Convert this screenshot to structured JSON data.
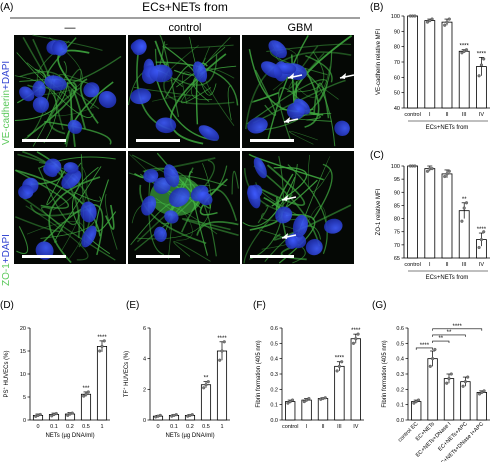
{
  "figure": {
    "panel_letters": [
      "(A)",
      "(B)",
      "(C)",
      "(D)",
      "(E)",
      "(F)",
      "(G)"
    ]
  },
  "microscopy": {
    "title": "ECs+NETs from",
    "columns": [
      "—",
      "control",
      "GBM"
    ],
    "rows": [
      {
        "stain": "VE-cadherin",
        "counter": "+DAPI"
      },
      {
        "stain": "ZO-1",
        "counter": "+DAPI"
      }
    ]
  },
  "colors": {
    "stain": "#5bc85b",
    "dapi": "#2d3fd0",
    "bar": "#ffffff",
    "point": "#7a7a7a"
  },
  "chart_data": [
    {
      "id": "B",
      "type": "bar",
      "ylabel": "VE-cadherin relative MFI",
      "xlabel": "ECs+NETs from",
      "categories": [
        "control",
        "I",
        "II",
        "III",
        "IV"
      ],
      "values": [
        100,
        97,
        96,
        77,
        67
      ],
      "errors": [
        0.3,
        1,
        2,
        1,
        6
      ],
      "points": [
        [
          100,
          100,
          100
        ],
        [
          96,
          97,
          98
        ],
        [
          94,
          96,
          98
        ],
        [
          76,
          77,
          78
        ],
        [
          61,
          68,
          72
        ]
      ],
      "ylim": [
        40,
        100
      ],
      "yticks": [
        40,
        50,
        60,
        70,
        80,
        90,
        100
      ],
      "significance": [
        "",
        "",
        "",
        "****",
        "****"
      ]
    },
    {
      "id": "C",
      "type": "bar",
      "ylabel": "ZO-1 relative MFI",
      "xlabel": "ECs+NETs from",
      "categories": [
        "control",
        "I",
        "II",
        "III",
        "IV"
      ],
      "values": [
        100,
        99,
        97,
        83,
        72
      ],
      "errors": [
        0.2,
        1,
        1.5,
        3,
        2.5
      ],
      "points": [
        [
          100,
          100,
          100
        ],
        [
          98,
          99,
          99
        ],
        [
          96,
          97,
          98
        ],
        [
          79,
          84,
          86
        ],
        [
          69,
          72,
          75
        ]
      ],
      "ylim": [
        65,
        100
      ],
      "yticks": [
        65,
        70,
        75,
        80,
        85,
        90,
        95,
        100
      ],
      "significance": [
        "",
        "",
        "",
        "**",
        "****"
      ]
    },
    {
      "id": "D",
      "type": "bar",
      "ylabel_main": "PS",
      "ylabel_sup": "+",
      "ylabel_rest": " HUVECs (%)",
      "xlabel": "NETs (µg DNA/ml)",
      "categories": [
        "0",
        "0.1",
        "0.2",
        "0.5",
        "1"
      ],
      "values": [
        1,
        1.2,
        1.3,
        5.6,
        16
      ],
      "errors": [
        0.3,
        0.3,
        0.3,
        0.5,
        1.2
      ],
      "points": [
        [
          0.8,
          1,
          1.2
        ],
        [
          0.9,
          1.2,
          1.4
        ],
        [
          1.0,
          1.3,
          1.5
        ],
        [
          5.2,
          5.6,
          6.1
        ],
        [
          15,
          16,
          17.2
        ]
      ],
      "ylim": [
        0,
        20
      ],
      "yticks": [
        0,
        5,
        10,
        15,
        20
      ],
      "significance": [
        "",
        "",
        "",
        "***",
        "****"
      ]
    },
    {
      "id": "E",
      "type": "bar",
      "ylabel_main": "TF",
      "ylabel_sup": "+",
      "ylabel_rest": " HUVECs (%)",
      "xlabel": "NETs (µg DNA/ml)",
      "categories": [
        "0",
        "0.1",
        "0.2",
        "0.5",
        "1"
      ],
      "values": [
        0.25,
        0.3,
        0.3,
        2.3,
        4.5
      ],
      "errors": [
        0.05,
        0.05,
        0.05,
        0.2,
        0.6
      ],
      "points": [
        [
          0.2,
          0.25,
          0.3
        ],
        [
          0.25,
          0.3,
          0.35
        ],
        [
          0.25,
          0.3,
          0.35
        ],
        [
          2.1,
          2.3,
          2.5
        ],
        [
          3.9,
          4.5,
          5.1
        ]
      ],
      "ylim": [
        0,
        6
      ],
      "yticks": [
        0,
        2,
        4,
        6
      ],
      "significance": [
        "",
        "",
        "",
        "**",
        "****"
      ]
    },
    {
      "id": "F",
      "type": "bar",
      "ylabel": "Fibrin formation (405 nm)",
      "categories": [
        "control",
        "I",
        "II",
        "III",
        "IV"
      ],
      "values": [
        0.12,
        0.13,
        0.14,
        0.35,
        0.53
      ],
      "errors": [
        0.01,
        0.01,
        0.005,
        0.03,
        0.03
      ],
      "points": [
        [
          0.11,
          0.12,
          0.13
        ],
        [
          0.12,
          0.13,
          0.14
        ],
        [
          0.135,
          0.14,
          0.145
        ],
        [
          0.32,
          0.35,
          0.38
        ],
        [
          0.5,
          0.53,
          0.56
        ]
      ],
      "ylim": [
        0,
        0.6
      ],
      "yticks": [
        0.0,
        0.1,
        0.2,
        0.3,
        0.4,
        0.5,
        0.6
      ],
      "significance": [
        "",
        "",
        "",
        "****",
        "****"
      ]
    },
    {
      "id": "G",
      "type": "bar",
      "ylabel": "Fibrin formation (405 nm)",
      "categories": [
        "control EC",
        "EC+NETs",
        "EC+NETs+DNase I",
        "EC+NETs+APC",
        "EC+NETs+DNase I+APC"
      ],
      "values": [
        0.12,
        0.4,
        0.27,
        0.25,
        0.18
      ],
      "errors": [
        0.01,
        0.05,
        0.03,
        0.03,
        0.01
      ],
      "points": [
        [
          0.11,
          0.12,
          0.13
        ],
        [
          0.35,
          0.4,
          0.46
        ],
        [
          0.24,
          0.27,
          0.3
        ],
        [
          0.22,
          0.25,
          0.28
        ],
        [
          0.17,
          0.18,
          0.19
        ]
      ],
      "ylim": [
        0,
        0.6
      ],
      "yticks": [
        0.0,
        0.1,
        0.2,
        0.3,
        0.4,
        0.5,
        0.6
      ],
      "significance": [],
      "brackets": [
        {
          "from": 0,
          "to": 1,
          "label": "****"
        },
        {
          "from": 1,
          "to": 2,
          "label": "**"
        },
        {
          "from": 1,
          "to": 3,
          "label": "**"
        },
        {
          "from": 1,
          "to": 4,
          "label": "****"
        }
      ]
    }
  ]
}
